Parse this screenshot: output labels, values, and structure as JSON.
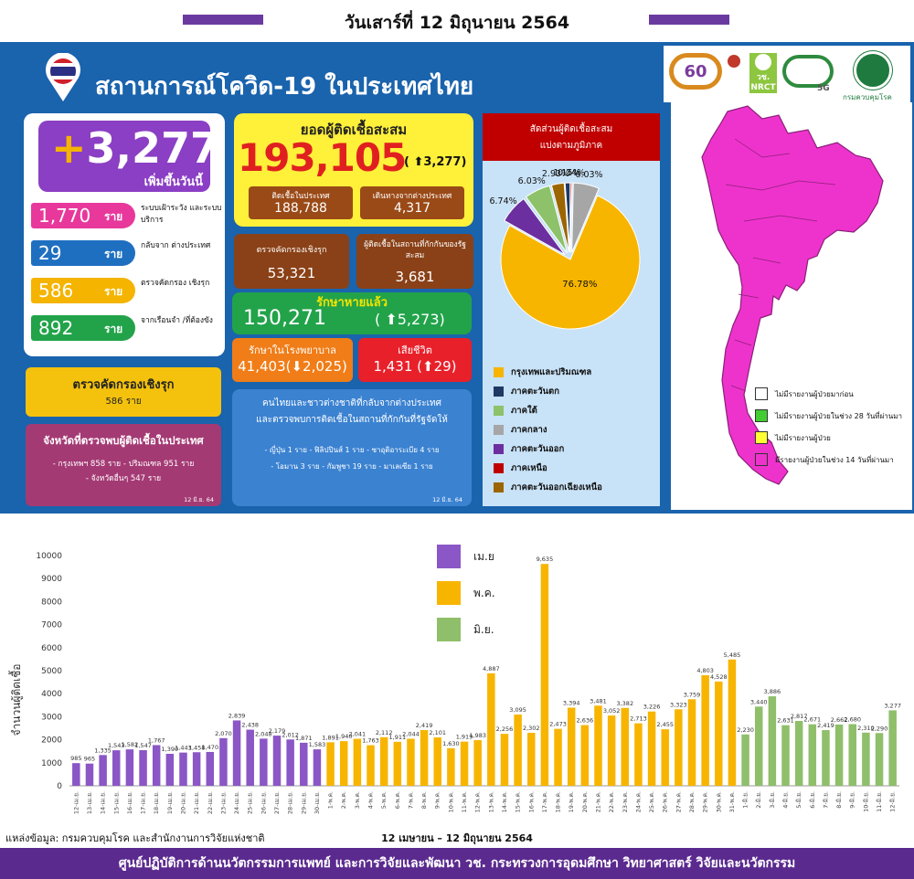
{
  "header": {
    "date": "วันเสาร์ที่ 12 มิถุนายน 2564"
  },
  "title": "สถานการณ์โควิด-19 ในประเทศไทย",
  "new_cases": {
    "value": "+3,277",
    "label": "เพิ่มขึ้นวันนี้"
  },
  "breakdown": [
    {
      "num": "1,770",
      "unit": "ราย",
      "desc": "ระบบเฝ้าระวัง และระบบบริการ",
      "color": "#e8389c"
    },
    {
      "num": "29",
      "unit": "ราย",
      "desc": "กลับจาก ต่างประเทศ",
      "color": "#1f6fc1"
    },
    {
      "num": "586",
      "unit": "ราย",
      "desc": "ตรวจคัดกรอง เชิงรุก",
      "color": "#f4b400"
    },
    {
      "num": "892",
      "unit": "ราย",
      "desc": "จากเรือนจำ /ที่ต้องขัง",
      "color": "#22a34a"
    }
  ],
  "proactive": {
    "title": "ตรวจคัดกรองเชิงรุก",
    "value": "586 ราย"
  },
  "provinces": {
    "title": "จังหวัดที่ตรวจพบผู้ติดเชื้อในประเทศ",
    "line1": "- กรุงเทพฯ 858 ราย  - ปริมณฑล 951 ราย",
    "line2": "- จังหวัดอื่นๆ 547 ราย",
    "date": "12 มิ.ย. 64"
  },
  "cumulative": {
    "title": "ยอดผู้ติดเชื้อสะสม",
    "value": "193,105",
    "delta": "( ⬆3,277)"
  },
  "domestic": {
    "label": "ติดเชื้อในประเทศ",
    "value": "188,788"
  },
  "abroad": {
    "label": "เดินทางจากต่างประเทศ",
    "value": "4,317"
  },
  "active_screening": {
    "label": "ตรวจคัดกรองเชิงรุก",
    "value": "53,321"
  },
  "quarantine_total": {
    "label": "ผู้ติดเชื้อในสถานที่กักกันของรัฐสะสม",
    "value": "3,681"
  },
  "recovered": {
    "label": "รักษาหายแล้ว",
    "value": "150,271",
    "delta": "( ⬆5,273)"
  },
  "hospital": {
    "label": "รักษาในโรงพยาบาล",
    "value": "41,403(⬇2,025)"
  },
  "deaths": {
    "label": "เสียชีวิต",
    "value": "1,431 (⬆29)"
  },
  "returnees": {
    "line1": "คนไทยและชาวต่างชาติที่กลับจากต่างประเทศ",
    "line2": "และตรวจพบการติดเชื้อในสถานที่กักกันที่รัฐจัดให้",
    "line3": "- ญี่ปุ่น 1 ราย  - ฟิลิปปินส์ 1 ราย  - ซาอุดิอาระเบีย 4 ราย",
    "line4": "- โอมาน 3 ราย  - กัมพูชา 19 ราย  - มาเลเซีย 1 ราย",
    "date": "12 มิ.ย. 64"
  },
  "pie": {
    "title1": "สัดส่วนผู้ติดเชื้อสะสม",
    "title2": "แบ่งตามภูมิภาค",
    "slices": [
      {
        "name": "กรุงเทพและปริมณฑล",
        "value": 76.78,
        "label": "76.78%",
        "color": "#f7b500"
      },
      {
        "name": "ภาคตะวันตก",
        "value": 1.15,
        "label": "1.15%",
        "color": "#1f3864"
      },
      {
        "name": "ภาคใต้",
        "value": 6.03,
        "label": "6.03%",
        "color": "#8dc26a"
      },
      {
        "name": "ภาคกลาง",
        "value": 6.03,
        "label": "6.03%",
        "color": "#a6a6a6"
      },
      {
        "name": "ภาคตะวันออก",
        "value": 6.74,
        "label": "6.74%",
        "color": "#6b2fa0"
      },
      {
        "name": "ภาคเหนือ",
        "value": 0.34,
        "label": "0.34%",
        "color": "#c00000"
      },
      {
        "name": "ภาคตะวันออกเฉียงเหนือ",
        "value": 2.93,
        "label": "2.93%",
        "color": "#9c6500"
      }
    ],
    "legend_order": [
      0,
      1,
      2,
      3,
      4,
      5,
      6
    ]
  },
  "logos": {
    "nrct": "วช.",
    "nrct_sub": "NRCT",
    "label_60": "60",
    "label_5g": "5G",
    "ddc": "กรมควบคุมโรค"
  },
  "map_legend": [
    {
      "label": "ไม่มีรายงานผู้ป่วยมาก่อน",
      "color": "#ffffff"
    },
    {
      "label": "ไม่มีรายงานผู้ป่วยในช่วง 28 วันที่ผ่านมา",
      "color": "#44cc33"
    },
    {
      "label": "ไม่มีรายงานผู้ป่วย",
      "color": "#ffff33"
    },
    {
      "label": "มีรายงานผู้ป่วยในช่วง 14 วันที่ผ่านมา",
      "color": "#ee33cc"
    }
  ],
  "chart_legend": [
    {
      "label": "เม.ย",
      "color": "#8b56c5"
    },
    {
      "label": "พ.ค.",
      "color": "#f7b500"
    },
    {
      "label": "มิ.ย.",
      "color": "#8fbf6a"
    }
  ],
  "source": "แหล่งข้อมูล: กรมควบคุมโรค และสำนักงานการวิจัยแห่งชาติ",
  "footer": "ศูนย์ปฏิบัติการด้านนวัตกรรมการแพทย์ และการวิจัยและพัฒนา วช.   กระทรวงการอุดมศึกษา วิทยาศาสตร์ วิจัยและนวัตกรรม",
  "chart_data": {
    "type": "bar",
    "title": "",
    "xlabel": "12 เมษายน – 12 มิถุนายน 2564",
    "ylabel": "จำนวนผู้ติดเชื้อ",
    "ylim": [
      0,
      10000
    ],
    "yticks": [
      0,
      1000,
      2000,
      3000,
      4000,
      5000,
      6000,
      7000,
      8000,
      9000,
      10000
    ],
    "grid": false,
    "legend_position": "top-center",
    "categories": [
      "12-เม.ย.",
      "13-เม.ย.",
      "14-เม.ย.",
      "15-เม.ย.",
      "16-เม.ย.",
      "17-เม.ย.",
      "18-เม.ย.",
      "19-เม.ย.",
      "20-เม.ย.",
      "21-เม.ย.",
      "22-เม.ย.",
      "23-เม.ย.",
      "24-เม.ย.",
      "25-เม.ย.",
      "26-เม.ย.",
      "27-เม.ย.",
      "28-เม.ย.",
      "29-เม.ย.",
      "30-เม.ย.",
      "1-พ.ค.",
      "2-พ.ค.",
      "3-พ.ค.",
      "4-พ.ค.",
      "5-พ.ค.",
      "6-พ.ค.",
      "7-พ.ค.",
      "8-พ.ค.",
      "9-พ.ค.",
      "10-พ.ค.",
      "11-พ.ค.",
      "12-พ.ค.",
      "13-พ.ค.",
      "14-พ.ค.",
      "15-พ.ค.",
      "16-พ.ค.",
      "17-พ.ค.",
      "18-พ.ค.",
      "19-พ.ค.",
      "20-พ.ค.",
      "21-พ.ค.",
      "22-พ.ค.",
      "23-พ.ค.",
      "24-พ.ค.",
      "25-พ.ค.",
      "26-พ.ค.",
      "27-พ.ค.",
      "28-พ.ค.",
      "29-พ.ค.",
      "30-พ.ค.",
      "31-พ.ค.",
      "1-มิ.ย.",
      "2-มิ.ย.",
      "3-มิ.ย.",
      "4-มิ.ย.",
      "5-มิ.ย.",
      "6-มิ.ย.",
      "7-มิ.ย.",
      "8-มิ.ย.",
      "9-มิ.ย.",
      "10-มิ.ย.",
      "11-มิ.ย.",
      "12-มิ.ย."
    ],
    "values": [
      985,
      965,
      1335,
      1543,
      1582,
      1547,
      1767,
      1390,
      1443,
      1458,
      1470,
      2070,
      2839,
      2438,
      2048,
      2179,
      2012,
      1871,
      1583,
      1891,
      1940,
      2041,
      1763,
      2112,
      1911,
      2044,
      2419,
      2101,
      1630,
      1919,
      1983,
      4887,
      2256,
      3095,
      2302,
      9635,
      2473,
      3394,
      2636,
      3481,
      3052,
      3382,
      2713,
      3226,
      2455,
      3323,
      3759,
      4803,
      4528,
      5485,
      2230,
      3440,
      3886,
      2631,
      2817,
      2671,
      2419,
      2662,
      2680,
      2310,
      2290,
      3277
    ],
    "series_month": [
      0,
      0,
      0,
      0,
      0,
      0,
      0,
      0,
      0,
      0,
      0,
      0,
      0,
      0,
      0,
      0,
      0,
      0,
      0,
      1,
      1,
      1,
      1,
      1,
      1,
      1,
      1,
      1,
      1,
      1,
      1,
      1,
      1,
      1,
      1,
      1,
      1,
      1,
      1,
      1,
      1,
      1,
      1,
      1,
      1,
      1,
      1,
      1,
      1,
      1,
      2,
      2,
      2,
      2,
      2,
      2,
      2,
      2,
      2,
      2,
      2,
      2
    ],
    "series": [
      {
        "name": "เม.ย"
      },
      {
        "name": "พ.ค."
      },
      {
        "name": "มิ.ย."
      }
    ]
  }
}
